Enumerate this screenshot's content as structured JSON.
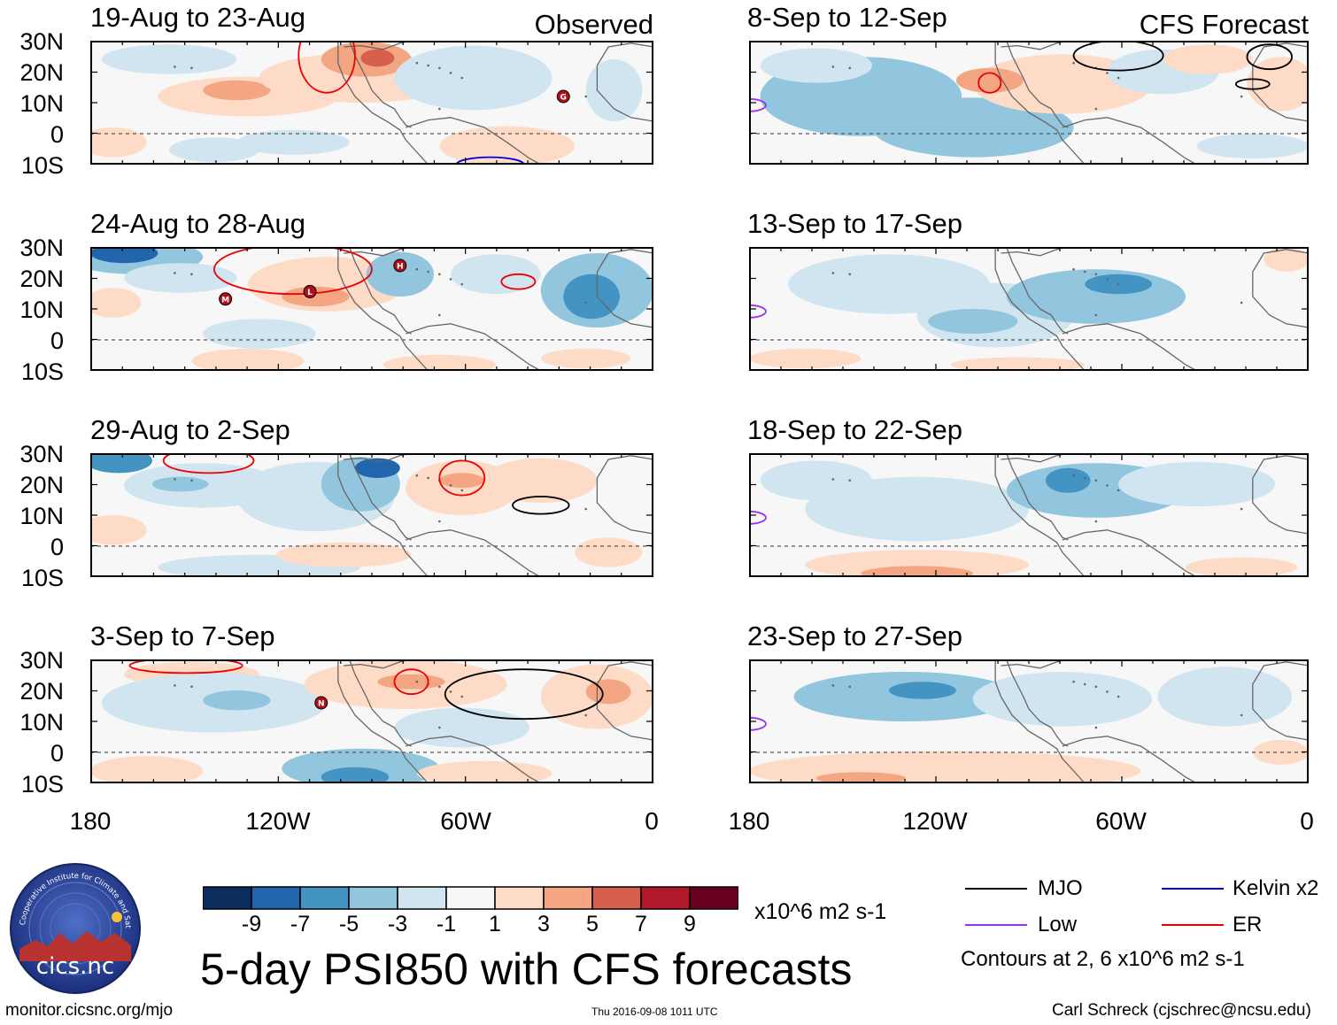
{
  "header": {
    "observed_label": "Observed",
    "forecast_label": "CFS Forecast"
  },
  "panels": [
    {
      "id": "obs-1",
      "title": "19-Aug to 23-Aug"
    },
    {
      "id": "obs-2",
      "title": "24-Aug to 28-Aug"
    },
    {
      "id": "obs-3",
      "title": "29-Aug to 2-Sep"
    },
    {
      "id": "obs-4",
      "title": "3-Sep to 7-Sep"
    },
    {
      "id": "fc-1",
      "title": "8-Sep to 12-Sep"
    },
    {
      "id": "fc-2",
      "title": "13-Sep to 17-Sep"
    },
    {
      "id": "fc-3",
      "title": "18-Sep to 22-Sep"
    },
    {
      "id": "fc-4",
      "title": "23-Sep to 27-Sep"
    }
  ],
  "lat_labels": [
    "30N",
    "20N",
    "10N",
    "0",
    "10S"
  ],
  "lon_labels": [
    "180",
    "120W",
    "60W",
    "0"
  ],
  "storm_markers": [
    {
      "panel": "obs-1",
      "letter": "G"
    },
    {
      "panel": "obs-2",
      "letter": "H"
    },
    {
      "panel": "obs-2",
      "letter": "M"
    },
    {
      "panel": "obs-2",
      "letter": "L"
    },
    {
      "panel": "obs-4",
      "letter": "N"
    }
  ],
  "colorbar": {
    "colors": [
      "#0c2e5e",
      "#2166ac",
      "#4393c3",
      "#92c5de",
      "#d1e5f0",
      "#f7f7f7",
      "#fddbc7",
      "#f4a582",
      "#d6604d",
      "#b2182b",
      "#67001f"
    ],
    "tick_labels": [
      "-9",
      "-7",
      "-5",
      "-3",
      "-1",
      "1",
      "3",
      "5",
      "7",
      "9"
    ],
    "units": "x10^6 m2 s-1"
  },
  "title": "5-day PSI850 with CFS forecasts",
  "legend": {
    "items": [
      {
        "label": "MJO",
        "color": "#000000"
      },
      {
        "label": "Kelvin x2",
        "color": "#0000dd"
      },
      {
        "label": "Low",
        "color": "#9933ee"
      },
      {
        "label": "ER",
        "color": "#ee0000"
      }
    ],
    "contours_note": "Contours at 2, 6 x10^6 m2 s-1"
  },
  "logo": {
    "text": "cics.nc",
    "ring_text": "Cooperative Institute for Climate and Satellites"
  },
  "footer": {
    "url": "monitor.cicsnc.org/mjo",
    "timestamp": "Thu 2016-09-08 1011 UTC",
    "author": "Carl Schreck (cjschrec@ncsu.edu)"
  }
}
